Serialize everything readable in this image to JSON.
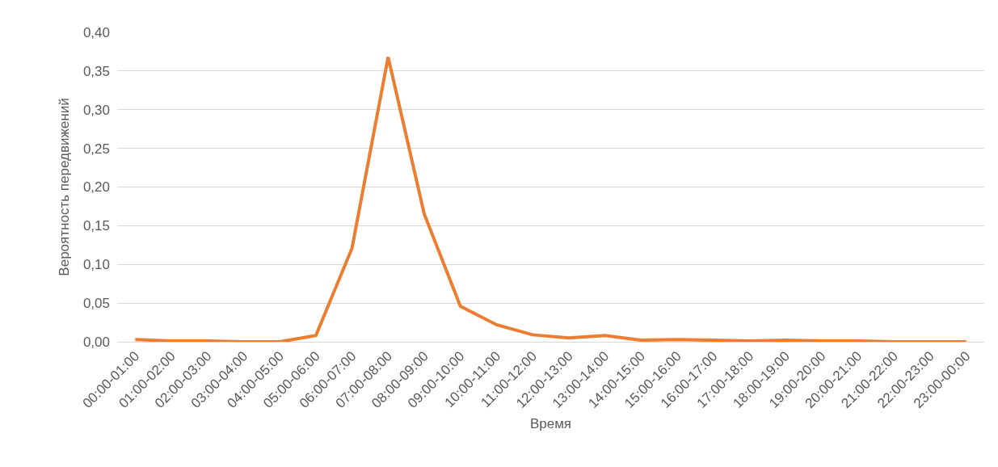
{
  "chart_data": {
    "type": "line",
    "xlabel": "Время",
    "ylabel": "Вероятность передвижений",
    "categories": [
      "00:00-01:00",
      "01:00-02:00",
      "02:00-03:00",
      "03:00-04:00",
      "04:00-05:00",
      "05:00-06:00",
      "06:00-07:00",
      "07:00-08:00",
      "08:00-09:00",
      "09:00-10:00",
      "10:00-11:00",
      "11:00-12:00",
      "12:00-13:00",
      "13:00-14:00",
      "14:00-15:00",
      "15:00-16:00",
      "16:00-17:00",
      "17:00-18:00",
      "18:00-19:00",
      "19:00-20:00",
      "20:00-21:00",
      "21:00-22:00",
      "22:00-23:00",
      "23:00-00:00"
    ],
    "series": [
      {
        "color": "#ed7d31",
        "values": [
          0.003,
          0.001,
          0.001,
          0,
          0,
          0.008,
          0.121,
          0.368,
          0.165,
          0.046,
          0.022,
          0.009,
          0.005,
          0.008,
          0.002,
          0.003,
          0.002,
          0.001,
          0.002,
          0.001,
          0.001,
          0,
          0,
          0
        ]
      }
    ],
    "ylim": [
      0,
      0.4
    ],
    "yticks": [
      {
        "value": 0,
        "label": "0,00"
      },
      {
        "value": 0.05,
        "label": "0,05"
      },
      {
        "value": 0.1,
        "label": "0,10"
      },
      {
        "value": 0.15,
        "label": "0,15"
      },
      {
        "value": 0.2,
        "label": "0,20"
      },
      {
        "value": 0.25,
        "label": "0,25"
      },
      {
        "value": 0.3,
        "label": "0,30"
      },
      {
        "value": 0.35,
        "label": "0,35"
      },
      {
        "value": 0.4,
        "label": "0,40"
      }
    ],
    "grid": "y",
    "marker": "none",
    "line_style": "solid"
  }
}
